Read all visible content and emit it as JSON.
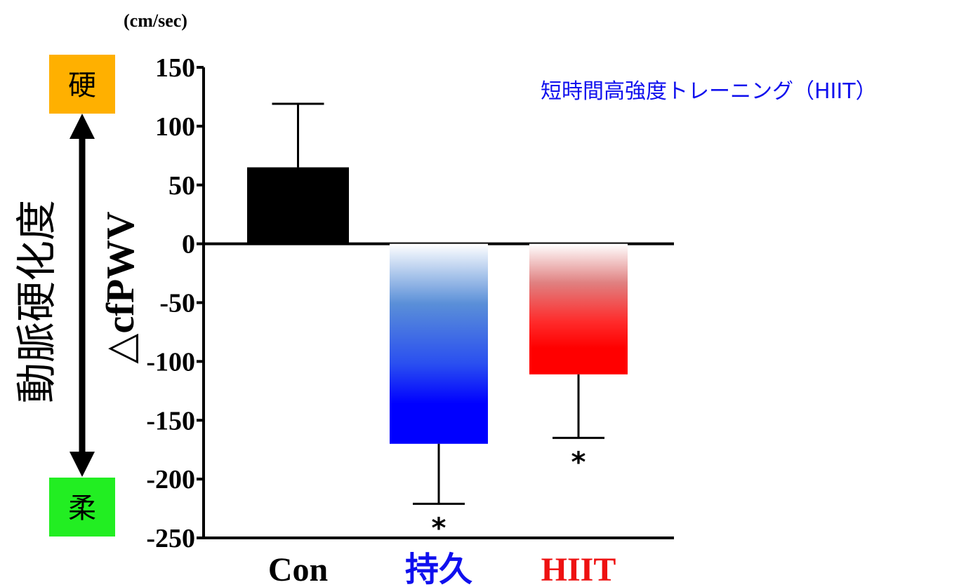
{
  "chart_data": {
    "type": "bar",
    "unit": "(cm/sec)",
    "ylabel": "△cfPWV",
    "ylim": [
      -250,
      150
    ],
    "yticks": [
      150,
      100,
      50,
      0,
      -50,
      -100,
      -150,
      -200,
      -250
    ],
    "categories": [
      "Con",
      "持久",
      "HIIT"
    ],
    "values": [
      65,
      -170,
      -111
    ],
    "errors": [
      54,
      51,
      54
    ],
    "significance": [
      "",
      "*",
      "*"
    ],
    "annotation": "短時間高強度トレーニング（HIIT）",
    "side_label": "動脈硬化度",
    "hard_label": "硬",
    "soft_label": "柔"
  },
  "colors": {
    "con": "#000000",
    "endurance_top": "#ffffff",
    "endurance_bottom": "#0000ff",
    "hiit_top": "#ffffff",
    "hiit_bottom": "#ff0000",
    "endurance_label": "#1010ee",
    "hiit_label": "#ee1111",
    "hard_box": "#ffb000",
    "soft_box": "#22ee22"
  }
}
